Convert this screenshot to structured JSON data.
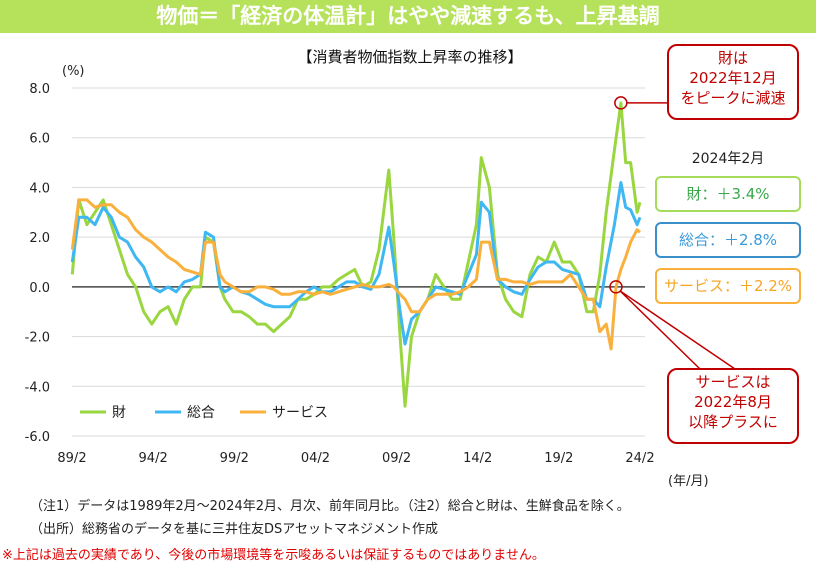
{
  "header": {
    "title": "物価＝「経済の体温計」はやや減速するも、上昇基調"
  },
  "chart_data": {
    "type": "line",
    "title": "【消費者物価指数上昇率の推移】",
    "ylabel": "(%)",
    "xlabel": "(年/月)",
    "ylim": [
      -6,
      8
    ],
    "yticks": [
      "8.0",
      "6.0",
      "4.0",
      "2.0",
      "0.0",
      "-2.0",
      "-4.0",
      "-6.0"
    ],
    "ytick_values": [
      8,
      6,
      4,
      2,
      0,
      -2,
      -4,
      -6
    ],
    "xlim": [
      1989.08,
      2024.08
    ],
    "xticks": [
      "89/2",
      "94/2",
      "99/2",
      "04/2",
      "09/2",
      "14/2",
      "19/2",
      "24/2"
    ],
    "xtick_values": [
      1989.08,
      1994.08,
      1999.08,
      2004.08,
      2009.08,
      2014.08,
      2019.08,
      2024.08
    ],
    "grid": true,
    "legend_position": "bottom-left",
    "series": [
      {
        "name": "財",
        "color": "#99d63f",
        "points": [
          [
            1989.1,
            0.5
          ],
          [
            1989.5,
            3.5
          ],
          [
            1990,
            2.5
          ],
          [
            1990.5,
            3.0
          ],
          [
            1991,
            3.5
          ],
          [
            1991.5,
            2.5
          ],
          [
            1992,
            1.5
          ],
          [
            1992.5,
            0.5
          ],
          [
            1993,
            0.0
          ],
          [
            1993.5,
            -1.0
          ],
          [
            1994,
            -1.5
          ],
          [
            1994.5,
            -1.0
          ],
          [
            1995,
            -0.8
          ],
          [
            1995.5,
            -1.5
          ],
          [
            1996,
            -0.5
          ],
          [
            1996.5,
            0.0
          ],
          [
            1997,
            0.0
          ],
          [
            1997.3,
            2.0
          ],
          [
            1997.8,
            1.8
          ],
          [
            1998.2,
            0.0
          ],
          [
            1998.5,
            -0.5
          ],
          [
            1999,
            -1.0
          ],
          [
            1999.5,
            -1.0
          ],
          [
            2000,
            -1.2
          ],
          [
            2000.5,
            -1.5
          ],
          [
            2001,
            -1.5
          ],
          [
            2001.5,
            -1.8
          ],
          [
            2002,
            -1.5
          ],
          [
            2002.5,
            -1.2
          ],
          [
            2003,
            -0.5
          ],
          [
            2003.5,
            -0.5
          ],
          [
            2004,
            -0.3
          ],
          [
            2004.5,
            0.0
          ],
          [
            2005,
            0.0
          ],
          [
            2005.5,
            0.3
          ],
          [
            2006,
            0.5
          ],
          [
            2006.5,
            0.7
          ],
          [
            2007,
            0.0
          ],
          [
            2007.5,
            0.2
          ],
          [
            2008,
            1.5
          ],
          [
            2008.6,
            4.7
          ],
          [
            2008.9,
            2.0
          ],
          [
            2009.3,
            -2.0
          ],
          [
            2009.6,
            -4.8
          ],
          [
            2010,
            -2.0
          ],
          [
            2010.5,
            -1.0
          ],
          [
            2011,
            -0.5
          ],
          [
            2011.5,
            0.5
          ],
          [
            2012,
            0.0
          ],
          [
            2012.5,
            -0.5
          ],
          [
            2013,
            -0.5
          ],
          [
            2013.5,
            1.0
          ],
          [
            2014,
            2.5
          ],
          [
            2014.3,
            5.2
          ],
          [
            2014.8,
            4.0
          ],
          [
            2015.3,
            0.5
          ],
          [
            2015.8,
            -0.5
          ],
          [
            2016.3,
            -1.0
          ],
          [
            2016.8,
            -1.2
          ],
          [
            2017.3,
            0.5
          ],
          [
            2017.8,
            1.2
          ],
          [
            2018.3,
            1.0
          ],
          [
            2018.8,
            1.8
          ],
          [
            2019.3,
            1.0
          ],
          [
            2019.8,
            1.0
          ],
          [
            2020.3,
            0.5
          ],
          [
            2020.8,
            -1.0
          ],
          [
            2021.2,
            -1.0
          ],
          [
            2021.6,
            0.5
          ],
          [
            2022,
            3.0
          ],
          [
            2022.5,
            5.5
          ],
          [
            2022.9,
            7.4
          ],
          [
            2023.2,
            5.0
          ],
          [
            2023.5,
            5.0
          ],
          [
            2023.9,
            3.0
          ],
          [
            2024.08,
            3.4
          ]
        ]
      },
      {
        "name": "総合",
        "color": "#3fb7f2",
        "points": [
          [
            1989.1,
            1.0
          ],
          [
            1989.5,
            2.8
          ],
          [
            1990,
            2.8
          ],
          [
            1990.5,
            2.5
          ],
          [
            1991,
            3.2
          ],
          [
            1991.5,
            2.8
          ],
          [
            1992,
            2.0
          ],
          [
            1992.5,
            1.8
          ],
          [
            1993,
            1.2
          ],
          [
            1993.5,
            0.8
          ],
          [
            1994,
            0.0
          ],
          [
            1994.5,
            -0.2
          ],
          [
            1995,
            0.0
          ],
          [
            1995.5,
            -0.2
          ],
          [
            1996,
            0.2
          ],
          [
            1996.5,
            0.3
          ],
          [
            1997,
            0.5
          ],
          [
            1997.3,
            2.2
          ],
          [
            1997.8,
            2.0
          ],
          [
            1998.2,
            0.0
          ],
          [
            1998.5,
            -0.2
          ],
          [
            1999,
            0.0
          ],
          [
            1999.5,
            -0.2
          ],
          [
            2000,
            -0.3
          ],
          [
            2000.5,
            -0.5
          ],
          [
            2001,
            -0.7
          ],
          [
            2001.5,
            -0.8
          ],
          [
            2002,
            -0.8
          ],
          [
            2002.5,
            -0.8
          ],
          [
            2003,
            -0.5
          ],
          [
            2003.5,
            -0.2
          ],
          [
            2004,
            0.0
          ],
          [
            2004.5,
            -0.2
          ],
          [
            2005,
            -0.2
          ],
          [
            2005.5,
            0.0
          ],
          [
            2006,
            0.2
          ],
          [
            2006.5,
            0.2
          ],
          [
            2007,
            0.0
          ],
          [
            2007.5,
            -0.1
          ],
          [
            2008,
            0.5
          ],
          [
            2008.6,
            2.4
          ],
          [
            2008.9,
            1.0
          ],
          [
            2009.3,
            -1.0
          ],
          [
            2009.6,
            -2.3
          ],
          [
            2010,
            -1.3
          ],
          [
            2010.5,
            -1.0
          ],
          [
            2011,
            -0.5
          ],
          [
            2011.5,
            0.0
          ],
          [
            2012,
            -0.1
          ],
          [
            2012.5,
            -0.2
          ],
          [
            2013,
            -0.3
          ],
          [
            2013.5,
            0.5
          ],
          [
            2014,
            1.3
          ],
          [
            2014.3,
            3.4
          ],
          [
            2014.8,
            3.0
          ],
          [
            2015.3,
            0.3
          ],
          [
            2015.8,
            0.0
          ],
          [
            2016.3,
            -0.2
          ],
          [
            2016.8,
            -0.3
          ],
          [
            2017.3,
            0.3
          ],
          [
            2017.8,
            0.8
          ],
          [
            2018.3,
            1.0
          ],
          [
            2018.8,
            1.0
          ],
          [
            2019.3,
            0.7
          ],
          [
            2019.8,
            0.6
          ],
          [
            2020.3,
            0.5
          ],
          [
            2020.8,
            -0.5
          ],
          [
            2021.2,
            -0.5
          ],
          [
            2021.6,
            -0.8
          ],
          [
            2022,
            0.8
          ],
          [
            2022.5,
            2.5
          ],
          [
            2022.9,
            4.2
          ],
          [
            2023.2,
            3.2
          ],
          [
            2023.5,
            3.1
          ],
          [
            2023.9,
            2.5
          ],
          [
            2024.08,
            2.8
          ]
        ]
      },
      {
        "name": "サービス",
        "color": "#f9b03c",
        "points": [
          [
            1989.1,
            1.5
          ],
          [
            1989.5,
            3.5
          ],
          [
            1990,
            3.5
          ],
          [
            1990.5,
            3.2
          ],
          [
            1991,
            3.3
          ],
          [
            1991.5,
            3.3
          ],
          [
            1992,
            3.0
          ],
          [
            1992.5,
            2.8
          ],
          [
            1993,
            2.3
          ],
          [
            1993.5,
            2.0
          ],
          [
            1994,
            1.8
          ],
          [
            1994.5,
            1.5
          ],
          [
            1995,
            1.2
          ],
          [
            1995.5,
            1.0
          ],
          [
            1996,
            0.7
          ],
          [
            1996.5,
            0.6
          ],
          [
            1997,
            0.5
          ],
          [
            1997.3,
            1.8
          ],
          [
            1997.8,
            1.8
          ],
          [
            1998.2,
            0.5
          ],
          [
            1998.5,
            0.2
          ],
          [
            1999,
            0.0
          ],
          [
            1999.5,
            -0.2
          ],
          [
            2000,
            -0.2
          ],
          [
            2000.5,
            0.0
          ],
          [
            2001,
            0.0
          ],
          [
            2001.5,
            -0.1
          ],
          [
            2002,
            -0.3
          ],
          [
            2002.5,
            -0.3
          ],
          [
            2003,
            -0.2
          ],
          [
            2003.5,
            -0.2
          ],
          [
            2004,
            -0.3
          ],
          [
            2004.5,
            -0.2
          ],
          [
            2005,
            -0.3
          ],
          [
            2005.5,
            -0.2
          ],
          [
            2006,
            -0.1
          ],
          [
            2006.5,
            0.0
          ],
          [
            2007,
            0.1
          ],
          [
            2007.5,
            0.0
          ],
          [
            2008,
            0.0
          ],
          [
            2008.6,
            0.1
          ],
          [
            2008.9,
            0.0
          ],
          [
            2009.3,
            -0.3
          ],
          [
            2009.6,
            -0.5
          ],
          [
            2010,
            -1.0
          ],
          [
            2010.5,
            -1.0
          ],
          [
            2011,
            -0.5
          ],
          [
            2011.5,
            -0.3
          ],
          [
            2012,
            -0.3
          ],
          [
            2012.5,
            -0.3
          ],
          [
            2013,
            -0.2
          ],
          [
            2013.5,
            0.0
          ],
          [
            2014,
            0.3
          ],
          [
            2014.3,
            1.8
          ],
          [
            2014.8,
            1.8
          ],
          [
            2015.3,
            0.3
          ],
          [
            2015.8,
            0.3
          ],
          [
            2016.3,
            0.2
          ],
          [
            2016.8,
            0.2
          ],
          [
            2017.3,
            0.1
          ],
          [
            2017.8,
            0.2
          ],
          [
            2018.3,
            0.2
          ],
          [
            2018.8,
            0.2
          ],
          [
            2019.3,
            0.2
          ],
          [
            2019.8,
            0.5
          ],
          [
            2020.3,
            0.0
          ],
          [
            2020.8,
            -0.5
          ],
          [
            2021.2,
            -0.5
          ],
          [
            2021.6,
            -1.8
          ],
          [
            2022,
            -1.5
          ],
          [
            2022.3,
            -2.5
          ],
          [
            2022.6,
            0.0
          ],
          [
            2022.9,
            0.7
          ],
          [
            2023.2,
            1.2
          ],
          [
            2023.5,
            1.8
          ],
          [
            2023.9,
            2.3
          ],
          [
            2024.08,
            2.2
          ]
        ]
      }
    ],
    "annotations": {
      "goods_peak": {
        "lines": [
          "財は",
          "2022年12月",
          "をピークに減速"
        ],
        "x": 2022.9,
        "y": 7.4
      },
      "services_plus": {
        "lines": [
          "サービスは",
          "2022年8月",
          "以降プラスに"
        ],
        "x": 2022.6,
        "y": 0.0
      }
    },
    "latest": {
      "date": "2024年2月",
      "goods": "財：＋3.4%",
      "total": "総合：＋2.8%",
      "services": "サービス：＋2.2%"
    }
  },
  "notes": {
    "note1": "（注1）データは1989年2月～2024年2月、月次、前年同月比。（注2）総合と財は、生鮮食品を除く。",
    "source": "（出所）総務省のデータを基に三井住友DSアセットマネジメント作成",
    "disclaimer": "※上記は過去の実績であり、今後の市場環境等を示唆あるいは保証するものではありません。"
  }
}
